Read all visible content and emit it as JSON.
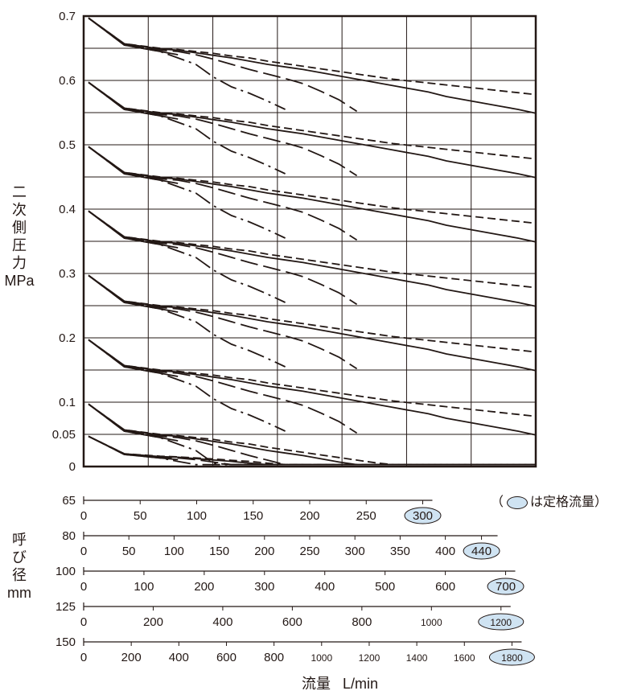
{
  "chart_data": {
    "type": "line",
    "ylabel_chars": [
      "二",
      "次",
      "側",
      "圧",
      "力"
    ],
    "yunit": "MPa",
    "xlabel": "流量",
    "xunit": "L/min",
    "ylim": [
      0,
      0.7
    ],
    "xlim_fraction": [
      0,
      1
    ],
    "y_ticks": [
      "0",
      "0.05",
      "0.1",
      "0.2",
      "0.3",
      "0.4",
      "0.5",
      "0.6",
      "0.7"
    ],
    "y_tick_values": [
      0,
      0.05,
      0.1,
      0.2,
      0.3,
      0.4,
      0.5,
      0.6,
      0.7
    ],
    "grid": true,
    "note": "（",
    "note_text": "は定格流量）",
    "diameter_label_chars": [
      "呼",
      "び",
      "径"
    ],
    "diameter_unit": "mm",
    "flow_scales": [
      {
        "size": "65",
        "max_flow": 400,
        "rated": "300",
        "rated_value": 300,
        "ticks": [
          0,
          50,
          100,
          150,
          200,
          250,
          300
        ],
        "labels": [
          "0",
          "50",
          "100",
          "150",
          "200",
          "250",
          "300"
        ]
      },
      {
        "size": "80",
        "max_flow": 500,
        "rated": "440",
        "rated_value": 440,
        "ticks": [
          0,
          50,
          100,
          150,
          200,
          250,
          300,
          350,
          400,
          440
        ],
        "labels": [
          "0",
          "50",
          "100",
          "150",
          "200",
          "250",
          "300",
          "350",
          "400",
          "440"
        ]
      },
      {
        "size": "100",
        "max_flow": 750,
        "rated": "700",
        "rated_value": 700,
        "ticks": [
          0,
          100,
          200,
          300,
          400,
          500,
          600,
          700
        ],
        "labels": [
          "0",
          "100",
          "200",
          "300",
          "400",
          "500",
          "600",
          "700"
        ]
      },
      {
        "size": "125",
        "max_flow": 1300,
        "rated": "1200",
        "rated_value": 1200,
        "ticks": [
          0,
          200,
          400,
          600,
          800,
          1000,
          1200
        ],
        "labels": [
          "0",
          "200",
          "400",
          "600",
          "800",
          "1000",
          "1200"
        ]
      },
      {
        "size": "150",
        "max_flow": 1900,
        "rated": "1800",
        "rated_value": 1800,
        "ticks": [
          0,
          200,
          400,
          600,
          800,
          1000,
          1200,
          1400,
          1600,
          1800
        ],
        "labels": [
          "0",
          "200",
          "400",
          "600",
          "800",
          "1000",
          "1200",
          "1400",
          "1600",
          "1800"
        ]
      }
    ],
    "set_pressures": [
      0.7,
      0.6,
      0.5,
      0.4,
      0.3,
      0.2,
      0.1,
      0.05
    ],
    "series_styles": [
      {
        "size": "65",
        "dash": "none"
      },
      {
        "size": "80",
        "dash": "22 6 3 6"
      },
      {
        "size": "100",
        "dash": "22 7"
      },
      {
        "size": "125",
        "dash": "10 5"
      },
      {
        "size": "150",
        "dash": "none"
      }
    ],
    "series": [
      {
        "set": 0.7,
        "curves": [
          {
            "x": [
              0,
              0.4,
              0.8,
              1.0
            ],
            "y": [
              0.685,
              0.67,
              0.66,
              0.655
            ]
          },
          {
            "x": [
              0,
              0.4,
              0.8,
              1.0,
              1.2,
              1.4,
              1.6,
              1.8,
              2.0,
              2.2
            ],
            "y": [
              0.685,
              0.67,
              0.66,
              0.65,
              0.64,
              0.62,
              0.605,
              0.595,
              0.583,
              0.57
            ]
          },
          {
            "x": [
              0,
              0.4,
              0.8,
              1.0,
              1.2,
              1.4,
              1.6,
              1.8,
              2.0,
              2.2,
              2.4,
              2.6,
              2.8,
              3.0
            ],
            "y": [
              0.685,
              0.671,
              0.662,
              0.66,
              0.655,
              0.648,
              0.64,
              0.632,
              0.625,
              0.618,
              0.61,
              0.598,
              0.585,
              0.567
            ]
          },
          {
            "x": [
              0,
              0.4,
              0.8,
              1.0,
              1.2,
              1.4,
              1.6,
              1.8,
              2.0,
              2.2,
              2.4,
              2.6,
              2.8,
              3.0,
              3.2,
              3.4,
              3.6,
              3.8,
              4.0,
              4.2,
              4.4,
              4.6,
              4.8,
              5.0
            ],
            "y": [
              0.685,
              0.672,
              0.665,
              0.663,
              0.66,
              0.657,
              0.653,
              0.65,
              0.645,
              0.641,
              0.637,
              0.633,
              0.629,
              0.625,
              0.621,
              0.617,
              0.614,
              0.611,
              0.608,
              0.605,
              0.602,
              0.599,
              0.596,
              0.593
            ]
          },
          {
            "x": [
              0,
              0.4,
              0.8,
              1.0,
              1.2,
              1.4,
              1.6,
              1.8,
              2.0,
              2.2,
              2.4,
              2.6,
              2.8,
              3.0,
              3.2,
              3.4,
              3.6,
              3.8,
              4.0,
              4.2,
              4.4,
              4.6,
              4.8,
              5.0
            ],
            "y": [
              0.685,
              0.672,
              0.664,
              0.662,
              0.658,
              0.654,
              0.65,
              0.645,
              0.64,
              0.636,
              0.632,
              0.627,
              0.622,
              0.617,
              0.612,
              0.607,
              0.602,
              0.597,
              0.59,
              0.585,
              0.58,
              0.575,
              0.57,
              0.564
            ]
          }
        ]
      }
    ]
  }
}
